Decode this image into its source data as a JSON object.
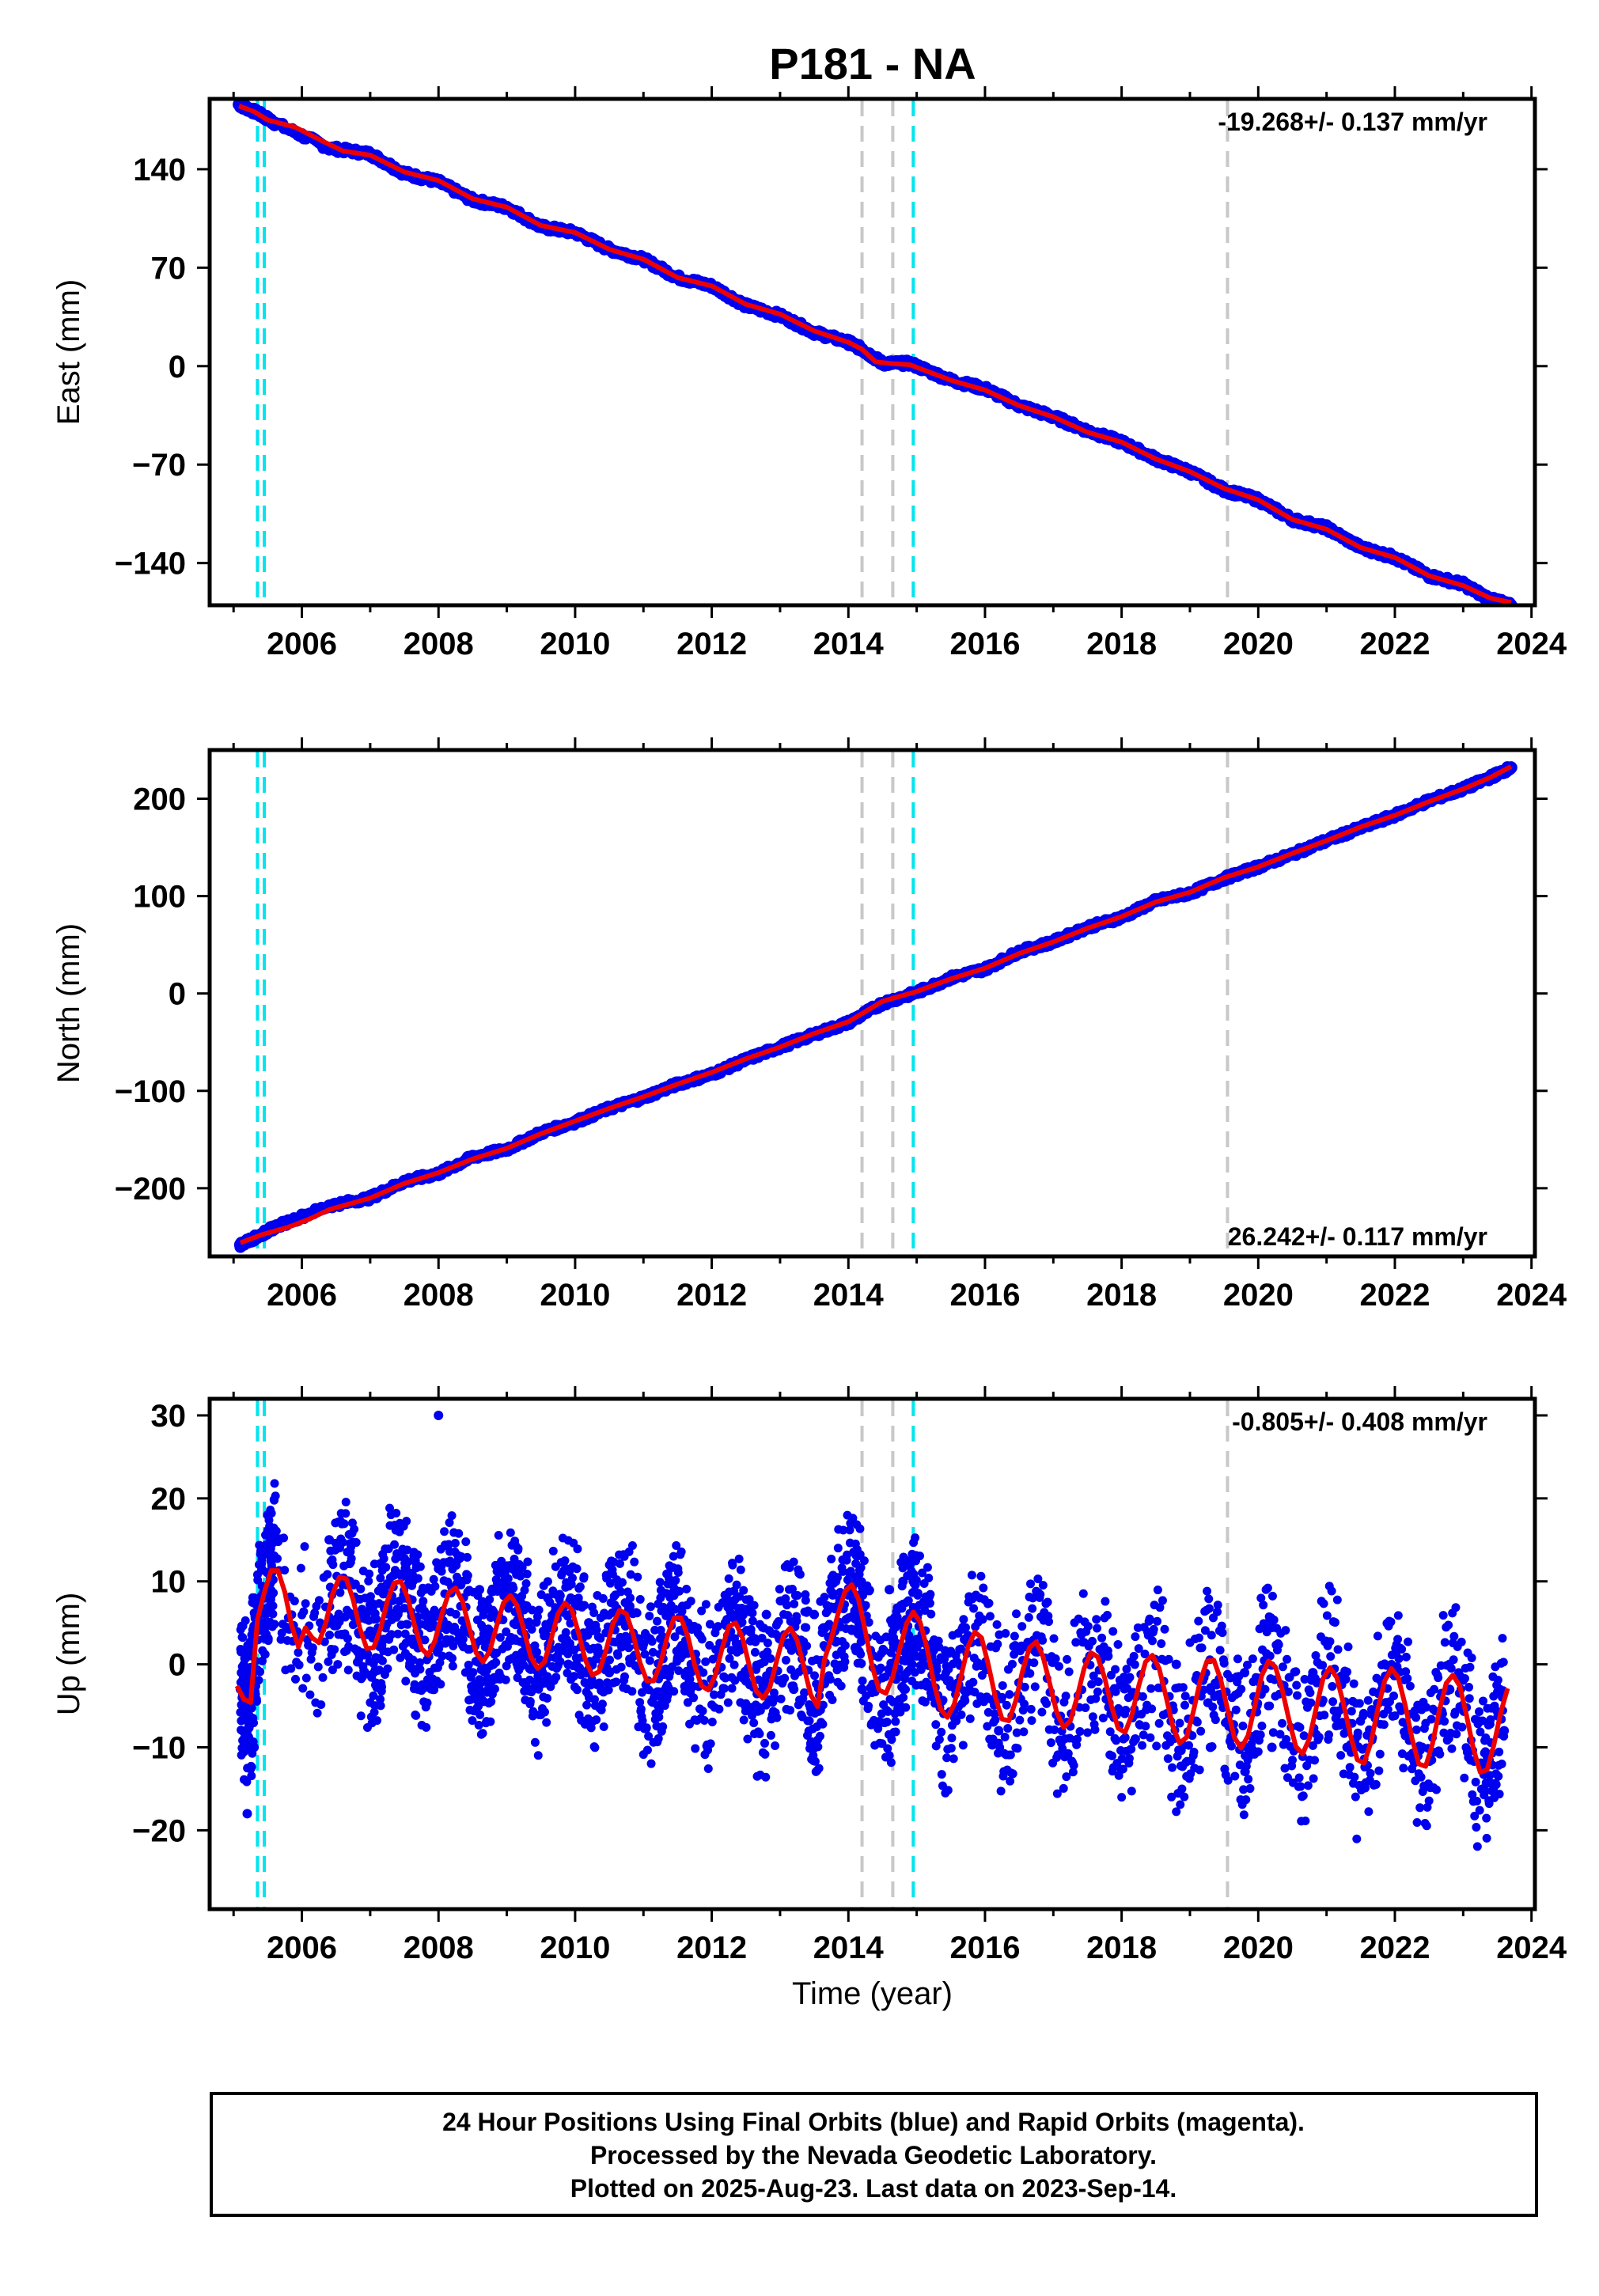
{
  "title": "P181 - NA",
  "colors": {
    "points": "#0000ee",
    "fit": "#ee0000",
    "step_gray": "#c8c8c8",
    "step_cyan": "#00e5ee",
    "frame": "#000000"
  },
  "footer": {
    "lines": [
      "24 Hour Positions Using Final Orbits (blue) and Rapid Orbits (magenta).",
      "Processed by the Nevada Geodetic Laboratory.",
      "Plotted on 2025-Aug-23. Last data on 2023-Sep-14."
    ]
  },
  "chart_data": [
    {
      "type": "scatter",
      "id": "east",
      "ylabel": "East (mm)",
      "xlabel": "",
      "rate_label": "-19.268+/- 0.137 mm/yr",
      "rate_position": "top-right",
      "xlim": [
        2004.65,
        2024.05
      ],
      "ylim": [
        -170,
        190
      ],
      "xticks": [
        2006,
        2008,
        2010,
        2012,
        2014,
        2016,
        2018,
        2020,
        2022,
        2024
      ],
      "yticks": [
        -140,
        -70,
        0,
        70,
        140
      ],
      "ytick_labels": [
        "−140",
        "−70",
        "0",
        "70",
        "140"
      ],
      "series": [
        {
          "role": "observations",
          "x": [
            2005.08,
            2005.35,
            2005.6,
            2006.4,
            2007.0,
            2007.5,
            2008.0,
            2008.5,
            2009.0,
            2009.5,
            2010.0,
            2010.5,
            2011.0,
            2011.5,
            2012.0,
            2012.5,
            2013.0,
            2013.5,
            2014.0,
            2014.2,
            2014.5,
            2014.9,
            2015.5,
            2016.0,
            2016.5,
            2017.0,
            2017.5,
            2018.0,
            2018.5,
            2019.0,
            2019.5,
            2020.0,
            2020.5,
            2021.0,
            2021.5,
            2022.0,
            2022.5,
            2023.0,
            2023.4,
            2023.7
          ],
          "y": [
            186,
            180,
            173,
            155,
            151,
            137,
            131,
            118,
            113,
            99,
            95,
            83,
            76,
            63,
            57,
            43,
            36,
            24,
            17,
            12,
            2,
            2,
            -10,
            -16,
            -28,
            -36,
            -46,
            -54,
            -66,
            -75,
            -88,
            -95,
            -109,
            -115,
            -129,
            -136,
            -149,
            -155,
            -166,
            -170
          ]
        },
        {
          "role": "model",
          "x": [
            2005.08,
            2005.3,
            2005.5,
            2005.9,
            2006.3,
            2006.6,
            2007.0,
            2007.5,
            2008.0,
            2008.5,
            2009.0,
            2009.5,
            2010.0,
            2010.5,
            2011.0,
            2011.5,
            2012.0,
            2012.5,
            2013.0,
            2013.5,
            2014.0,
            2014.2,
            2014.4,
            2014.6,
            2014.9,
            2015.5,
            2016.0,
            2016.5,
            2017.0,
            2017.5,
            2018.0,
            2018.5,
            2019.0,
            2019.5,
            2020.0,
            2020.5,
            2021.0,
            2021.5,
            2022.0,
            2022.5,
            2023.0,
            2023.4,
            2023.7
          ],
          "y": [
            185,
            181,
            175,
            170,
            160,
            153,
            150,
            138,
            132,
            119,
            113,
            100,
            95,
            83,
            76,
            63,
            57,
            44,
            37,
            25,
            17,
            12,
            3,
            2,
            1,
            -10,
            -17,
            -28,
            -36,
            -47,
            -54,
            -66,
            -75,
            -87,
            -95,
            -109,
            -116,
            -129,
            -136,
            -149,
            -156,
            -165,
            -168
          ]
        }
      ],
      "step_lines": [
        {
          "x": 2005.35,
          "kind": "cyan"
        },
        {
          "x": 2005.45,
          "kind": "cyan"
        },
        {
          "x": 2014.2,
          "kind": "gray"
        },
        {
          "x": 2014.65,
          "kind": "gray"
        },
        {
          "x": 2014.95,
          "kind": "cyan"
        },
        {
          "x": 2019.55,
          "kind": "gray"
        }
      ]
    },
    {
      "type": "scatter",
      "id": "north",
      "ylabel": "North (mm)",
      "xlabel": "",
      "rate_label": "26.242+/- 0.117 mm/yr",
      "rate_position": "bottom-right",
      "xlim": [
        2004.65,
        2024.05
      ],
      "ylim": [
        -270,
        250
      ],
      "xticks": [
        2006,
        2008,
        2010,
        2012,
        2014,
        2016,
        2018,
        2020,
        2022,
        2024
      ],
      "yticks": [
        -200,
        -100,
        0,
        100,
        200
      ],
      "ytick_labels": [
        "−200",
        "−100",
        "0",
        "100",
        "200"
      ],
      "series": [
        {
          "role": "observations",
          "x": [
            2005.1,
            2005.4,
            2005.6,
            2006.4,
            2007.0,
            2007.5,
            2008.0,
            2008.5,
            2009.0,
            2009.5,
            2010.0,
            2010.5,
            2011.0,
            2011.5,
            2012.0,
            2012.5,
            2013.0,
            2013.5,
            2014.0,
            2014.5,
            2015.0,
            2015.5,
            2016.0,
            2016.5,
            2017.0,
            2017.5,
            2018.0,
            2018.5,
            2019.0,
            2019.5,
            2020.0,
            2020.5,
            2021.0,
            2021.5,
            2022.0,
            2022.5,
            2023.0,
            2023.4,
            2023.7
          ],
          "y": [
            -258,
            -248,
            -240,
            -218,
            -210,
            -193,
            -185,
            -168,
            -160,
            -143,
            -132,
            -118,
            -107,
            -93,
            -83,
            -68,
            -55,
            -42,
            -30,
            -10,
            1,
            16,
            25,
            43,
            53,
            68,
            78,
            95,
            103,
            118,
            130,
            143,
            157,
            170,
            183,
            198,
            210,
            222,
            232
          ]
        },
        {
          "role": "model",
          "x": [
            2005.1,
            2005.4,
            2005.8,
            2006.1,
            2006.4,
            2007.0,
            2007.5,
            2008.0,
            2008.5,
            2009.0,
            2009.5,
            2010.0,
            2010.5,
            2011.0,
            2011.5,
            2012.0,
            2012.5,
            2013.0,
            2013.5,
            2014.0,
            2014.5,
            2015.0,
            2015.5,
            2016.0,
            2016.5,
            2017.0,
            2017.5,
            2018.0,
            2018.5,
            2019.0,
            2019.5,
            2020.0,
            2020.5,
            2021.0,
            2021.5,
            2022.0,
            2022.5,
            2023.0,
            2023.4,
            2023.7
          ],
          "y": [
            -256,
            -248,
            -240,
            -232,
            -222,
            -210,
            -195,
            -184,
            -170,
            -159,
            -144,
            -131,
            -118,
            -106,
            -93,
            -81,
            -67,
            -55,
            -41,
            -29,
            -8,
            2,
            15,
            26,
            41,
            53,
            67,
            79,
            94,
            104,
            119,
            130,
            144,
            157,
            171,
            183,
            197,
            210,
            222,
            233
          ]
        }
      ],
      "step_lines": [
        {
          "x": 2005.35,
          "kind": "cyan"
        },
        {
          "x": 2005.45,
          "kind": "cyan"
        },
        {
          "x": 2014.2,
          "kind": "gray"
        },
        {
          "x": 2014.65,
          "kind": "gray"
        },
        {
          "x": 2014.95,
          "kind": "cyan"
        },
        {
          "x": 2019.55,
          "kind": "gray"
        }
      ]
    },
    {
      "type": "scatter",
      "id": "up",
      "ylabel": "Up (mm)",
      "xlabel": "Time (year)",
      "rate_label": "-0.805+/- 0.408 mm/yr",
      "rate_position": "top-right",
      "xlim": [
        2004.65,
        2024.05
      ],
      "ylim": [
        -29.5,
        32
      ],
      "xticks": [
        2006,
        2008,
        2010,
        2012,
        2014,
        2016,
        2018,
        2020,
        2022,
        2024
      ],
      "yticks": [
        -20,
        -10,
        0,
        10,
        20,
        30
      ],
      "ytick_labels": [
        "−20",
        "−10",
        "0",
        "10",
        "20",
        "30"
      ],
      "series": [
        {
          "role": "observations",
          "x": [
            2005.1,
            2005.2,
            2005.3,
            2005.5,
            2005.6,
            2006.4,
            2006.7,
            2007.0,
            2007.2,
            2007.5,
            2007.7,
            2008.0,
            2008.3,
            2008.6,
            2008.8,
            2009.1,
            2009.3,
            2009.6,
            2009.9,
            2010.2,
            2010.5,
            2010.8,
            2011.2,
            2011.4,
            2011.7,
            2012.2,
            2012.5,
            2012.8,
            2013.2,
            2013.5,
            2013.8,
            2014.1,
            2014.2,
            2014.6,
            2014.8,
            2015.0,
            2015.3,
            2015.7,
            2016.2,
            2016.7,
            2017.2,
            2017.8,
            2018.2,
            2018.8,
            2019.3,
            2019.8,
            2020.2,
            2020.8,
            2021.3,
            2021.8,
            2022.3,
            2022.8,
            2023.3,
            2023.6
          ],
          "y": [
            -3,
            -18,
            -10,
            18,
            15,
            15,
            10,
            4,
            3,
            8,
            2,
            30,
            3,
            9,
            0,
            8,
            2,
            8,
            0,
            5,
            -1,
            7,
            -1,
            5,
            0,
            5,
            -2,
            6,
            -3,
            6,
            4,
            2,
            -3,
            9,
            10,
            3,
            -4,
            3,
            -8,
            2,
            -7,
            1,
            -9,
            0,
            -10,
            -1,
            -10,
            -1,
            -10,
            -2,
            -11,
            -3,
            -15,
            -8
          ]
        },
        {
          "role": "model",
          "x": [
            2005.05,
            2005.15,
            2005.25,
            2005.35,
            2005.45,
            2005.55,
            2005.65,
            2005.75,
            2005.85,
            2005.95,
            2006.05,
            2006.15,
            2006.25,
            2006.35,
            2006.45,
            2006.55,
            2006.65,
            2006.75,
            2006.85,
            2006.95,
            2007.05,
            2007.15,
            2007.25,
            2007.35,
            2007.45,
            2007.55,
            2007.65,
            2007.75,
            2007.85,
            2007.95,
            2008.05,
            2008.15,
            2008.25,
            2008.35,
            2008.45,
            2008.55,
            2008.65,
            2008.75,
            2008.85,
            2008.95,
            2009.05,
            2009.15,
            2009.25,
            2009.35,
            2009.45,
            2009.55,
            2009.65,
            2009.75,
            2009.85,
            2009.95,
            2010.05,
            2010.15,
            2010.25,
            2010.35,
            2010.45,
            2010.55,
            2010.65,
            2010.75,
            2010.85,
            2010.95,
            2011.05,
            2011.15,
            2011.25,
            2011.35,
            2011.45,
            2011.55,
            2011.65,
            2011.75,
            2011.85,
            2011.95,
            2012.05,
            2012.15,
            2012.25,
            2012.35,
            2012.45,
            2012.55,
            2012.65,
            2012.75,
            2012.85,
            2012.95,
            2013.05,
            2013.15,
            2013.25,
            2013.35,
            2013.45,
            2013.55,
            2013.65,
            2013.75,
            2013.85,
            2013.95,
            2014.05,
            2014.15,
            2014.25,
            2014.35,
            2014.45,
            2014.55,
            2014.65,
            2014.75,
            2014.85,
            2014.95,
            2015.05,
            2015.15,
            2015.25,
            2015.35,
            2015.45,
            2015.55,
            2015.65,
            2015.75,
            2015.85,
            2015.95,
            2016.05,
            2016.15,
            2016.25,
            2016.35,
            2016.45,
            2016.55,
            2016.65,
            2016.75,
            2016.85,
            2016.95,
            2017.05,
            2017.15,
            2017.25,
            2017.35,
            2017.45,
            2017.55,
            2017.65,
            2017.75,
            2017.85,
            2017.95,
            2018.05,
            2018.15,
            2018.25,
            2018.35,
            2018.45,
            2018.55,
            2018.65,
            2018.75,
            2018.85,
            2018.95,
            2019.05,
            2019.15,
            2019.25,
            2019.35,
            2019.45,
            2019.55,
            2019.65,
            2019.75,
            2019.85,
            2019.95,
            2020.05,
            2020.15,
            2020.25,
            2020.35,
            2020.45,
            2020.55,
            2020.65,
            2020.75,
            2020.85,
            2020.95,
            2021.05,
            2021.15,
            2021.25,
            2021.35,
            2021.45,
            2021.55,
            2021.65,
            2021.75,
            2021.85,
            2021.95,
            2022.05,
            2022.15,
            2022.25,
            2022.35,
            2022.45,
            2022.55,
            2022.65,
            2022.75,
            2022.85,
            2022.95,
            2023.05,
            2023.15,
            2023.25,
            2023.35,
            2023.45,
            2023.55,
            2023.65
          ],
          "y": [
            -2.6,
            -4.2,
            -4.6,
            5.4,
            8.7,
            11.3,
            11.3,
            8.7,
            4.7,
            2.1,
            4.4,
            3.2,
            2.6,
            5.0,
            8.5,
            10.5,
            10.3,
            7.8,
            4.3,
            1.9,
            2.0,
            4.3,
            7.6,
            9.8,
            10.0,
            8.0,
            4.7,
            1.9,
            1.1,
            2.9,
            6.1,
            8.6,
            9.2,
            7.6,
            4.4,
            1.4,
            0.3,
            1.6,
            4.6,
            7.4,
            8.3,
            7.1,
            4.1,
            0.9,
            -0.5,
            0.3,
            3.1,
            6.1,
            7.4,
            6.6,
            3.8,
            0.5,
            -1.3,
            -0.9,
            1.6,
            4.8,
            6.5,
            6.1,
            3.6,
            0.2,
            -2.0,
            -2.0,
            0.1,
            3.4,
            5.6,
            5.6,
            3.4,
            -0.1,
            -2.6,
            -3.1,
            -1.4,
            1.9,
            4.6,
            5.0,
            3.2,
            -0.2,
            -3.2,
            -4.1,
            -2.8,
            0.4,
            3.5,
            4.4,
            2.9,
            -0.4,
            -3.7,
            -5.1,
            0.6,
            3.1,
            6.1,
            8.8,
            9.6,
            7.8,
            3.9,
            -0.3,
            -3.1,
            -3.5,
            -1.5,
            1.8,
            4.9,
            6.3,
            5.1,
            2.0,
            -2.2,
            -5.4,
            -6.4,
            -4.8,
            -1.4,
            2.1,
            3.9,
            3.2,
            -0.1,
            -3.9,
            -6.6,
            -6.8,
            -4.4,
            -0.8,
            2.0,
            2.7,
            0.9,
            -2.4,
            -5.8,
            -7.6,
            -6.8,
            -3.9,
            -0.5,
            1.4,
            0.9,
            -1.6,
            -5.0,
            -7.7,
            -8.2,
            -6.1,
            -2.6,
            0.3,
            1.1,
            -0.5,
            -3.9,
            -7.5,
            -9.5,
            -8.8,
            -5.7,
            -2.0,
            0.4,
            0.5,
            -1.8,
            -5.4,
            -8.8,
            -10.1,
            -8.6,
            -5.0,
            -1.4,
            0.4,
            -0.3,
            -3.0,
            -6.7,
            -9.9,
            -10.8,
            -8.9,
            -5.2,
            -1.7,
            -0.4,
            -1.6,
            -4.8,
            -8.6,
            -11.5,
            -11.9,
            -9.4,
            -5.4,
            -2.0,
            -0.5,
            -1.6,
            -4.9,
            -8.9,
            -12.0,
            -12.3,
            -9.6,
            -5.6,
            -2.3,
            -1.3,
            -2.6,
            -6.2,
            -10.2,
            -13.0,
            -12.7,
            -9.7,
            -5.8,
            -2.9
          ]
        }
      ],
      "step_lines": [
        {
          "x": 2005.35,
          "kind": "cyan"
        },
        {
          "x": 2005.45,
          "kind": "cyan"
        },
        {
          "x": 2014.2,
          "kind": "gray"
        },
        {
          "x": 2014.65,
          "kind": "gray"
        },
        {
          "x": 2014.95,
          "kind": "cyan"
        },
        {
          "x": 2019.55,
          "kind": "gray"
        }
      ]
    }
  ]
}
